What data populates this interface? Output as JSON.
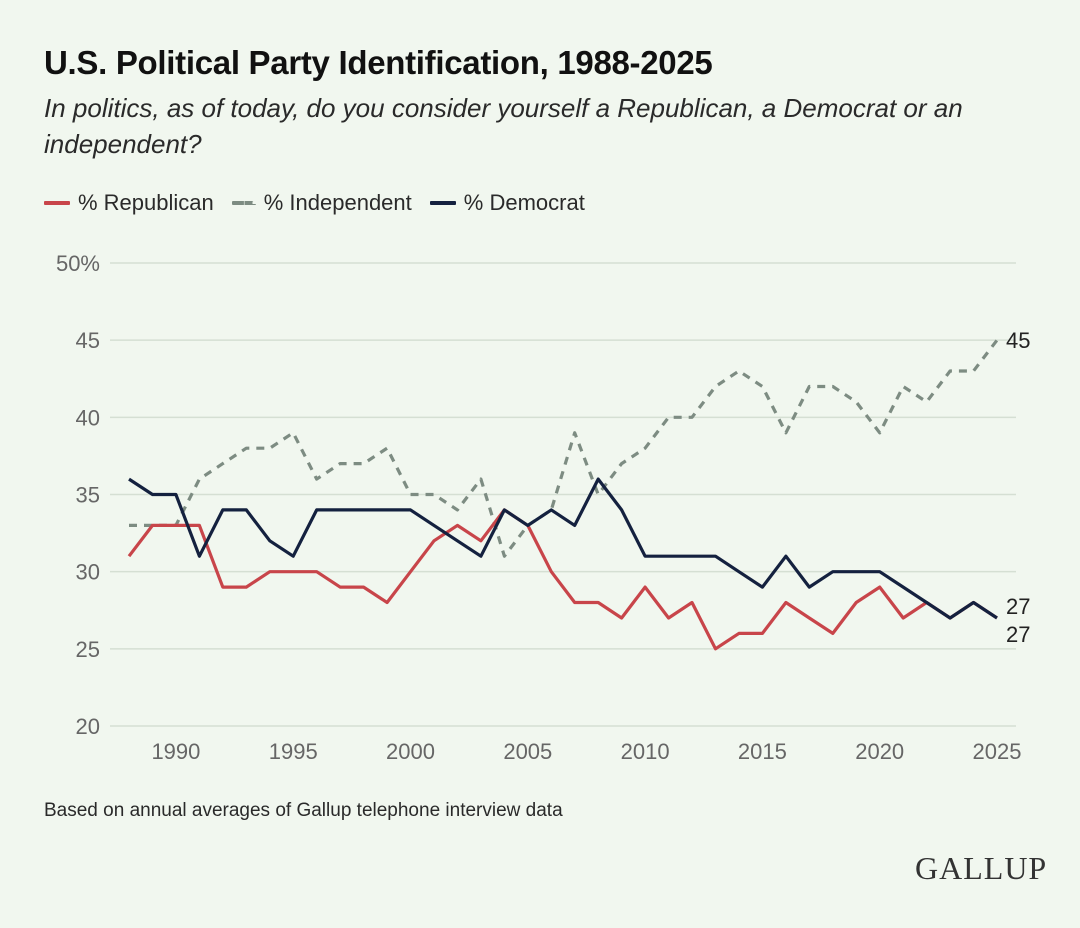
{
  "chart_data": {
    "type": "line",
    "title": "U.S. Political Party Identification, 1988-2025",
    "subtitle": "In politics, as of today, do you consider yourself a Republican, a Democrat or an independent?",
    "xlabel": "",
    "ylabel": "",
    "ylim": [
      20,
      50
    ],
    "xlim": [
      1988,
      2025
    ],
    "yticks": [
      "50%",
      "45",
      "40",
      "35",
      "30",
      "25",
      "20"
    ],
    "ytick_values": [
      50,
      45,
      40,
      35,
      30,
      25,
      20
    ],
    "xticks": [
      "1990",
      "1995",
      "2000",
      "2005",
      "2010",
      "2015",
      "2020",
      "2025"
    ],
    "xtick_values": [
      1990,
      1995,
      2000,
      2005,
      2010,
      2015,
      2020,
      2025
    ],
    "grid": true,
    "legend_position": "top-left",
    "x": [
      1988,
      1989,
      1990,
      1991,
      1992,
      1993,
      1994,
      1995,
      1996,
      1997,
      1998,
      1999,
      2000,
      2001,
      2002,
      2003,
      2004,
      2005,
      2006,
      2007,
      2008,
      2009,
      2010,
      2011,
      2012,
      2013,
      2014,
      2015,
      2016,
      2017,
      2018,
      2019,
      2020,
      2021,
      2022,
      2023,
      2024,
      2025
    ],
    "series": [
      {
        "name": "% Republican",
        "color": "#c8454a",
        "style": "solid",
        "values": [
          31,
          33,
          33,
          33,
          29,
          29,
          30,
          30,
          30,
          29,
          29,
          28,
          30,
          32,
          33,
          32,
          34,
          33,
          30,
          28,
          28,
          27,
          29,
          27,
          28,
          25,
          26,
          26,
          28,
          27,
          26,
          28,
          29,
          27,
          28,
          27,
          28,
          27
        ]
      },
      {
        "name": "% Independent",
        "color": "#7d8c82",
        "style": "dashed",
        "values": [
          33,
          33,
          33,
          36,
          37,
          38,
          38,
          39,
          36,
          37,
          37,
          38,
          35,
          35,
          34,
          36,
          31,
          33,
          34,
          39,
          35,
          37,
          38,
          40,
          40,
          42,
          43,
          42,
          39,
          42,
          42,
          41,
          39,
          42,
          41,
          43,
          43,
          45
        ]
      },
      {
        "name": "% Democrat",
        "color": "#14213f",
        "style": "solid",
        "values": [
          36,
          35,
          35,
          31,
          34,
          34,
          32,
          31,
          34,
          34,
          34,
          34,
          34,
          33,
          32,
          31,
          34,
          33,
          34,
          33,
          36,
          34,
          31,
          31,
          31,
          31,
          30,
          29,
          31,
          29,
          30,
          30,
          30,
          29,
          28,
          27,
          28,
          27
        ]
      }
    ],
    "end_labels": [
      {
        "series": "% Independent",
        "text": "45"
      },
      {
        "series": "% Democrat",
        "text": "27"
      },
      {
        "series": "% Republican",
        "text": "27"
      }
    ],
    "footnote": "Based on annual averages of Gallup telephone interview data"
  },
  "brand": "GALLUP"
}
